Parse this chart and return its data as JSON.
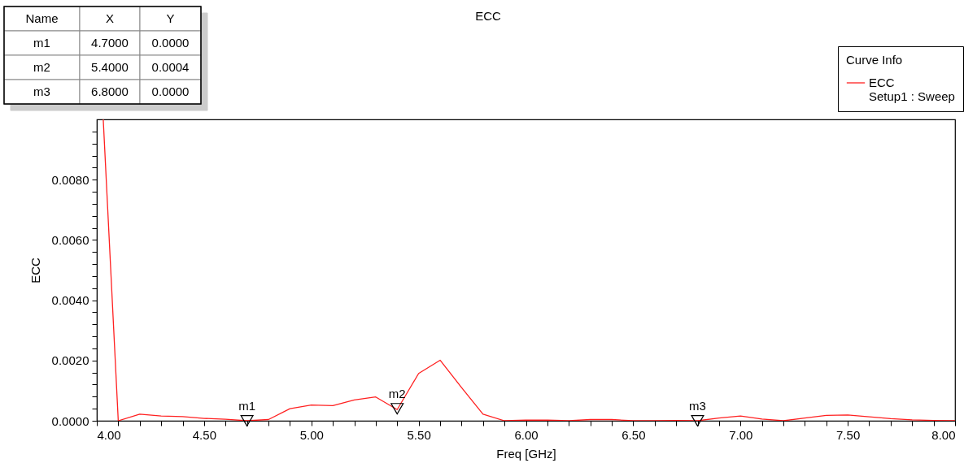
{
  "chart_data": {
    "type": "line",
    "title": "ECC",
    "xlabel": "Freq [GHz]",
    "ylabel": "ECC",
    "legend_title": "Curve Info",
    "legend": "top right",
    "x": [
      4.03,
      4.1,
      4.2,
      4.3,
      4.4,
      4.5,
      4.6,
      4.7,
      4.8,
      4.9,
      5.0,
      5.1,
      5.2,
      5.3,
      5.4,
      5.5,
      5.6,
      5.7,
      5.8,
      5.9,
      6.0,
      6.1,
      6.2,
      6.3,
      6.4,
      6.5,
      6.6,
      6.7,
      6.8,
      6.9,
      7.0,
      7.1,
      7.2,
      7.3,
      7.4,
      7.5,
      7.6,
      7.7,
      7.8,
      7.9,
      8.0
    ],
    "series": [
      {
        "name": "ECC",
        "color": "#ff2020",
        "values": [
          0.01,
          0,
          0.00022,
          0.00016,
          0.00014,
          8e-05,
          5e-05,
          0,
          4e-05,
          0.0004,
          0.00052,
          0.0005,
          0.00069,
          0.00079,
          0.00037,
          0.00157,
          0.00201,
          0.0011,
          0.00022,
          0,
          2e-05,
          2e-05,
          0,
          4e-05,
          4e-05,
          0,
          0,
          1e-05,
          0,
          9e-05,
          0.00016,
          6e-05,
          0,
          9e-05,
          0.00018,
          0.00019,
          0.00013,
          7e-05,
          3e-05,
          1e-05,
          0
        ]
      },
      {
        "type": "scatter",
        "marker": "triangle",
        "color": "#000000",
        "x": [
          4.7,
          5.4,
          6.8
        ],
        "values": [
          0,
          0.0004,
          0
        ]
      }
    ],
    "xlim": [
      4.0,
      8.0
    ],
    "ylim": [
      0,
      0.01
    ],
    "xticks": [
      {
        "value": 4.0,
        "label": "4.00"
      },
      {
        "value": 4.1,
        "label": null
      },
      {
        "value": 4.2,
        "label": null
      },
      {
        "value": 4.3,
        "label": null
      },
      {
        "value": 4.4,
        "label": null
      },
      {
        "value": 4.5,
        "label": "4.50"
      },
      {
        "value": 4.6,
        "label": null
      },
      {
        "value": 4.7,
        "label": null
      },
      {
        "value": 4.8,
        "label": null
      },
      {
        "value": 4.9,
        "label": null
      },
      {
        "value": 5.0,
        "label": "5.00"
      },
      {
        "value": 5.1,
        "label": null
      },
      {
        "value": 5.2,
        "label": null
      },
      {
        "value": 5.3,
        "label": null
      },
      {
        "value": 5.4,
        "label": null
      },
      {
        "value": 5.5,
        "label": "5.50"
      },
      {
        "value": 5.6,
        "label": null
      },
      {
        "value": 5.7,
        "label": null
      },
      {
        "value": 5.8,
        "label": null
      },
      {
        "value": 5.9,
        "label": null
      },
      {
        "value": 6.0,
        "label": "6.00"
      },
      {
        "value": 6.1,
        "label": null
      },
      {
        "value": 6.2,
        "label": null
      },
      {
        "value": 6.3,
        "label": null
      },
      {
        "value": 6.4,
        "label": null
      },
      {
        "value": 6.5,
        "label": "6.50"
      },
      {
        "value": 6.6,
        "label": null
      },
      {
        "value": 6.7,
        "label": null
      },
      {
        "value": 6.8,
        "label": null
      },
      {
        "value": 6.9,
        "label": null
      },
      {
        "value": 7.0,
        "label": "7.00"
      },
      {
        "value": 7.1,
        "label": null
      },
      {
        "value": 7.2,
        "label": null
      },
      {
        "value": 7.3,
        "label": null
      },
      {
        "value": 7.4,
        "label": null
      },
      {
        "value": 7.5,
        "label": "7.50"
      },
      {
        "value": 7.6,
        "label": null
      },
      {
        "value": 7.7,
        "label": null
      },
      {
        "value": 7.8,
        "label": null
      },
      {
        "value": 7.9,
        "label": null
      },
      {
        "value": 8.0,
        "label": "8.00"
      }
    ],
    "yticks": [
      {
        "value": 0,
        "label": "0.0000"
      },
      {
        "value": 0.0004,
        "label": null
      },
      {
        "value": 0.0008,
        "label": null
      },
      {
        "value": 0.0012,
        "label": null
      },
      {
        "value": 0.0016,
        "label": null
      },
      {
        "value": 0.002,
        "label": "0.0020"
      },
      {
        "value": 0.0024,
        "label": null
      },
      {
        "value": 0.0028,
        "label": null
      },
      {
        "value": 0.0032,
        "label": null
      },
      {
        "value": 0.0036,
        "label": null
      },
      {
        "value": 0.004,
        "label": "0.0040"
      },
      {
        "value": 0.0044,
        "label": null
      },
      {
        "value": 0.0048,
        "label": null
      },
      {
        "value": 0.0052,
        "label": null
      },
      {
        "value": 0.0056,
        "label": null
      },
      {
        "value": 0.006,
        "label": "0.0060"
      },
      {
        "value": 0.0064,
        "label": null
      },
      {
        "value": 0.0068,
        "label": null
      },
      {
        "value": 0.0072,
        "label": null
      },
      {
        "value": 0.0076,
        "label": null
      },
      {
        "value": 0.008,
        "label": "0.0080"
      },
      {
        "value": 0.0084,
        "label": null
      },
      {
        "value": 0.0088,
        "label": null
      },
      {
        "value": 0.0092,
        "label": null
      },
      {
        "value": 0.0096,
        "label": null
      }
    ],
    "annotations": [
      {
        "text": "m1",
        "x": 4.7,
        "y": 0
      },
      {
        "text": "m2",
        "x": 5.4,
        "y": 0.0004
      },
      {
        "text": "m3",
        "x": 6.8,
        "y": 0
      },
      "Name",
      "X",
      "Y",
      "m1",
      "4.7000",
      "0.0000",
      "m2",
      "5.4000",
      "0.0004",
      "m3",
      "6.8000",
      "0.0000",
      "Setup1 : Sweep"
    ]
  }
}
